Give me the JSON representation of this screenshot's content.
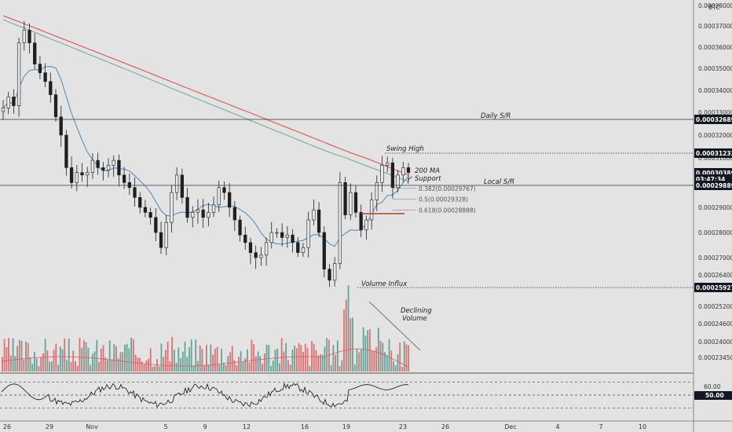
{
  "chart_data": {
    "type": "candlestick",
    "currency": "BTC",
    "y_axis": {
      "range": [
        0.000232,
        0.00038
      ],
      "ticks": [
        "0.00038000",
        "0.00037000",
        "0.00036000",
        "0.00035000",
        "0.00034000",
        "0.00033000",
        "0.00032000",
        "0.00031000",
        "0.00029000",
        "0.00028000",
        "0.00027000",
        "0.00026400",
        "0.00025200",
        "0.00024600",
        "0.00024000",
        "0.00023450"
      ]
    },
    "x_axis": {
      "ticks": [
        "26",
        "29",
        "Nov",
        "5",
        "9",
        "12",
        "16",
        "19",
        "23",
        "26",
        "Dec",
        "4",
        "7",
        "10"
      ]
    },
    "price_badges": [
      {
        "label": "0.00032689",
        "value": 0.00032689,
        "color": "#131722"
      },
      {
        "label": "0.00031233",
        "value": 0.00031233,
        "color": "#131722"
      },
      {
        "label": "0.00030389",
        "value": 0.00030389,
        "color": "#131722"
      },
      {
        "label": "03:47:34",
        "value": 0.0003,
        "color": "#131722"
      },
      {
        "label": "0.00029889",
        "value": 0.00029889,
        "color": "#131722"
      },
      {
        "label": "0.00025927",
        "value": 0.00025927,
        "color": "#131722"
      }
    ],
    "levels": [
      {
        "name": "Daily S/R",
        "value": 0.00032689,
        "style": "solid"
      },
      {
        "name": "Local S/R",
        "value": 0.00029889,
        "style": "solid"
      },
      {
        "name": "Swing High",
        "value": 0.00031233,
        "style": "dotted"
      },
      {
        "name": "Volume Influx",
        "value": 0.00025927,
        "style": "dotted"
      }
    ],
    "fib_levels": [
      {
        "label": "0.382(0.00029767)",
        "value": 0.00029767
      },
      {
        "label": "0.5(0.00029328)",
        "value": 0.00029328
      },
      {
        "label": "0.618(0.00028888)",
        "value": 0.00028888
      }
    ],
    "annotations": {
      "swing_high": "Swing High",
      "ma_support_1": "200 MA",
      "ma_support_2": "Support",
      "daily_sr": "Daily S/R",
      "local_sr": "Local S/R",
      "volume_influx": "Volume Influx",
      "declining_1": "Declining",
      "declining_2": "Volume"
    },
    "rsi": {
      "ticks": [
        "60.00",
        "50.00"
      ],
      "levels": [
        70,
        50,
        30
      ]
    },
    "colors": {
      "up": "#4a9a8c",
      "down": "#e05a5a",
      "ma200": "#d84a4a",
      "ma_long": "#6aa89a",
      "ma_short": "#4a8ab8",
      "background": "#e3e3e3"
    },
    "close": [
      0.000332,
      0.000337,
      0.000333,
      0.000362,
      0.000368,
      0.000362,
      0.000352,
      0.000348,
      0.000344,
      0.000338,
      0.000328,
      0.00032,
      0.000306,
      0.0003,
      0.000304,
      0.000303,
      0.000304,
      0.000309,
      0.000306,
      0.000305,
      0.000307,
      0.000309,
      0.000303,
      0.0003,
      0.000298,
      0.000294,
      0.00029,
      0.000288,
      0.000286,
      0.00028,
      0.000274,
      0.000284,
      0.000296,
      0.000303,
      0.000294,
      0.000286,
      0.000288,
      0.000289,
      0.000286,
      0.000288,
      0.000291,
      0.000298,
      0.000296,
      0.00029,
      0.000285,
      0.000279,
      0.000276,
      0.000272,
      0.00027,
      0.000271,
      0.000276,
      0.00028,
      0.00028,
      0.000278,
      0.000279,
      0.000276,
      0.000272,
      0.000274,
      0.000285,
      0.000289,
      0.00028,
      0.000266,
      0.000262,
      0.000268,
      0.0003,
      0.000287,
      0.000296,
      0.000288,
      0.000281,
      0.000285,
      0.000293,
      0.0003,
      0.000307,
      0.000308,
      0.000298,
      0.000303,
      0.000306,
      0.000304
    ]
  }
}
